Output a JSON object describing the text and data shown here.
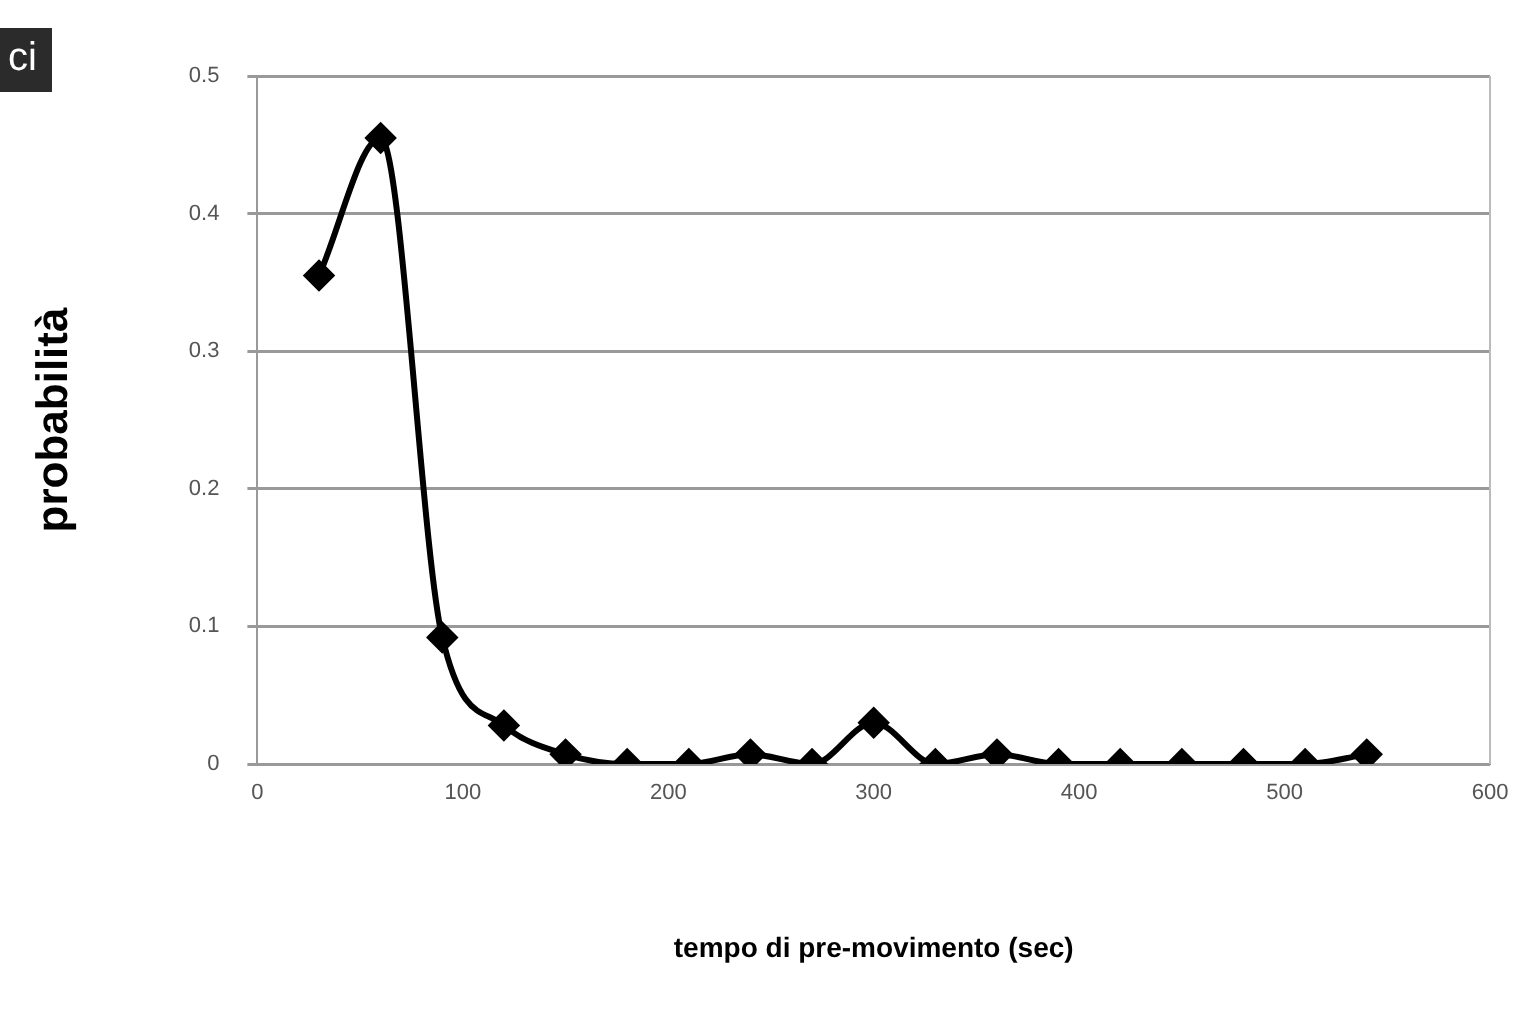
{
  "chart_data": {
    "type": "line",
    "xlabel": "tempo di pre-movimento (sec)",
    "ylabel": "probabilità",
    "annotations": [
      "ci"
    ],
    "x": [
      30,
      60,
      90,
      120,
      150,
      180,
      210,
      240,
      270,
      300,
      330,
      360,
      390,
      420,
      450,
      480,
      510,
      540
    ],
    "series": [
      {
        "color": "#000000",
        "values": [
          0.355,
          0.455,
          0.092,
          0.028,
          0.007,
          0,
          0,
          0.007,
          0,
          0.03,
          0,
          0.007,
          0,
          0,
          0,
          0,
          0,
          0.007
        ]
      }
    ],
    "xlim": [
      0,
      600
    ],
    "xticks": [
      0,
      100,
      200,
      300,
      400,
      500,
      600
    ],
    "ylim": [
      0,
      0.5
    ],
    "yticks": [
      0,
      0.1,
      0.2,
      0.3,
      0.4,
      0.5
    ],
    "grid": "y",
    "marker": "diamond",
    "line_style": "solid",
    "legend": false
  }
}
